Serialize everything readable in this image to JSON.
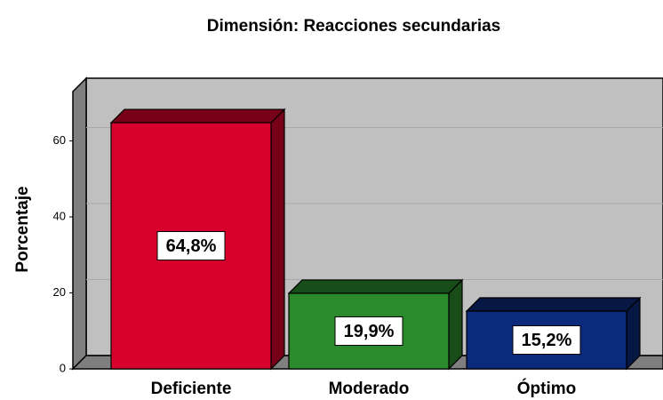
{
  "chart_data": {
    "type": "bar3d",
    "title": "Dimensión: Reacciones secundarias",
    "ylabel": "Porcentaje",
    "categories": [
      "Deficiente",
      "Moderado",
      "Óptimo"
    ],
    "values": [
      64.8,
      19.9,
      15.2
    ],
    "value_labels": [
      "64,8%",
      "19,9%",
      "15,2%"
    ],
    "colors": [
      "#d8002c",
      "#2b8a2b",
      "#0b2a7c"
    ],
    "ylim": [
      0,
      73
    ],
    "yticks": [
      0,
      20,
      40,
      60
    ],
    "grid": true
  }
}
